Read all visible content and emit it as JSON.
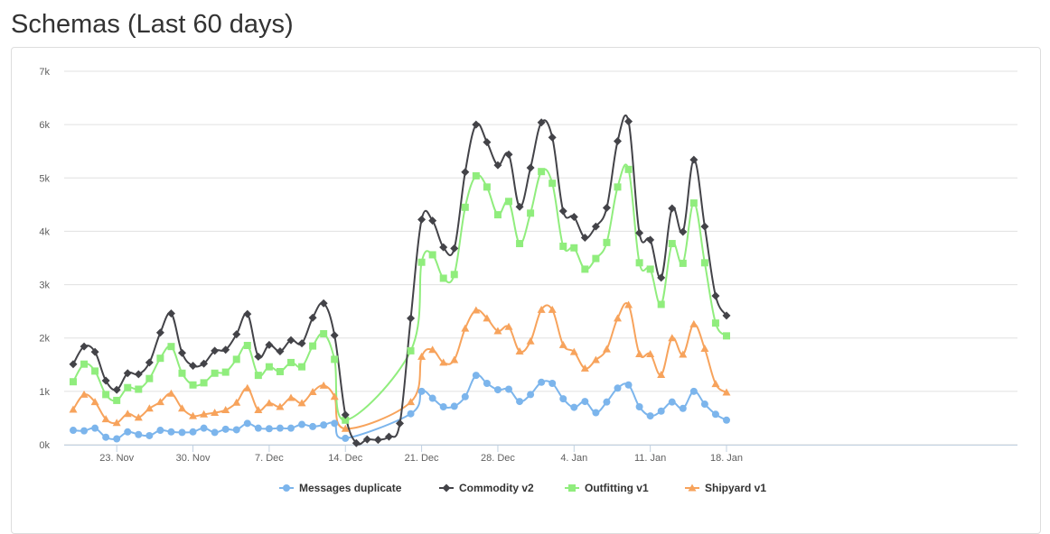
{
  "page": {
    "title": "Schemas (Last 60 days)"
  },
  "chart_data": {
    "type": "line",
    "title": "Schemas (Last 60 days)",
    "xlabel": "",
    "ylabel": "",
    "ylim": [
      0,
      7000
    ],
    "y_ticks": [
      0,
      1000,
      2000,
      3000,
      4000,
      5000,
      6000,
      7000
    ],
    "y_tick_labels": [
      "0k",
      "1k",
      "2k",
      "3k",
      "4k",
      "5k",
      "6k",
      "7k"
    ],
    "x_ticks": [
      "23. Nov",
      "30. Nov",
      "7. Dec",
      "14. Dec",
      "21. Dec",
      "28. Dec",
      "4. Jan",
      "11. Jan",
      "18. Jan"
    ],
    "x_start": "2016-11-19",
    "legend_position": "bottom-center",
    "grid": true,
    "x": [
      "2016-11-19",
      "2016-11-20",
      "2016-11-21",
      "2016-11-22",
      "2016-11-23",
      "2016-11-24",
      "2016-11-25",
      "2016-11-26",
      "2016-11-27",
      "2016-11-28",
      "2016-11-29",
      "2016-11-30",
      "2016-12-01",
      "2016-12-02",
      "2016-12-03",
      "2016-12-04",
      "2016-12-05",
      "2016-12-06",
      "2016-12-07",
      "2016-12-08",
      "2016-12-09",
      "2016-12-10",
      "2016-12-11",
      "2016-12-12",
      "2016-12-13",
      "2016-12-14",
      "2016-12-15",
      "2016-12-16",
      "2016-12-17",
      "2016-12-18",
      "2016-12-19",
      "2016-12-20",
      "2016-12-21",
      "2016-12-22",
      "2016-12-23",
      "2016-12-24",
      "2016-12-25",
      "2016-12-26",
      "2016-12-27",
      "2016-12-28",
      "2016-12-29",
      "2016-12-30",
      "2016-12-31",
      "2017-01-01",
      "2017-01-02",
      "2017-01-03",
      "2017-01-04",
      "2017-01-05",
      "2017-01-06",
      "2017-01-07",
      "2017-01-08",
      "2017-01-09",
      "2017-01-10",
      "2017-01-11",
      "2017-01-12",
      "2017-01-13",
      "2017-01-14",
      "2017-01-15",
      "2017-01-16",
      "2017-01-17",
      "2017-01-18",
      "2017-01-19"
    ],
    "series": [
      {
        "name": "Messages duplicate",
        "color": "#7cb5ec",
        "marker": "circle",
        "values": [
          270,
          260,
          310,
          140,
          110,
          240,
          190,
          170,
          270,
          240,
          230,
          240,
          310,
          230,
          290,
          280,
          400,
          310,
          300,
          310,
          310,
          380,
          340,
          370,
          400,
          120,
          null,
          null,
          null,
          null,
          null,
          580,
          1000,
          870,
          710,
          720,
          900,
          1300,
          1150,
          1030,
          1040,
          810,
          940,
          1170,
          1150,
          860,
          700,
          810,
          600,
          800,
          1060,
          1120,
          710,
          540,
          630,
          800,
          680,
          1000,
          760,
          570,
          460,
          null
        ]
      },
      {
        "name": "Commodity v2",
        "color": "#434348",
        "marker": "diamond",
        "values": [
          1510,
          1840,
          1740,
          1200,
          1030,
          1340,
          1320,
          1540,
          2100,
          2460,
          1720,
          1480,
          1520,
          1760,
          1780,
          2070,
          2450,
          1650,
          1870,
          1750,
          1960,
          1900,
          2380,
          2650,
          2050,
          560,
          30,
          100,
          90,
          150,
          400,
          2370,
          4220,
          4200,
          3700,
          3680,
          5110,
          6000,
          5670,
          5240,
          5440,
          4460,
          5190,
          6040,
          5760,
          4380,
          4270,
          3880,
          4090,
          4440,
          5690,
          6060,
          3970,
          3840,
          3130,
          4430,
          3990,
          5340,
          4090,
          2790,
          2420,
          null
        ]
      },
      {
        "name": "Outfitting v1",
        "color": "#90ed7d",
        "marker": "square",
        "values": [
          1180,
          1510,
          1380,
          940,
          830,
          1070,
          1040,
          1240,
          1620,
          1840,
          1340,
          1120,
          1160,
          1340,
          1360,
          1600,
          1860,
          1300,
          1460,
          1370,
          1540,
          1460,
          1850,
          2080,
          1600,
          460,
          null,
          null,
          null,
          null,
          null,
          1760,
          3420,
          3560,
          3120,
          3190,
          4450,
          5040,
          4830,
          4310,
          4560,
          3770,
          4340,
          5120,
          4900,
          3720,
          3690,
          3290,
          3490,
          3790,
          4830,
          5160,
          3410,
          3290,
          2630,
          3770,
          3400,
          4530,
          3410,
          2280,
          2040,
          null
        ]
      },
      {
        "name": "Shipyard v1",
        "color": "#f7a35c",
        "marker": "triangle",
        "values": [
          660,
          940,
          800,
          480,
          410,
          580,
          510,
          680,
          800,
          960,
          680,
          540,
          570,
          600,
          650,
          790,
          1060,
          650,
          780,
          710,
          880,
          780,
          990,
          1110,
          900,
          300,
          null,
          null,
          null,
          null,
          null,
          800,
          1650,
          1780,
          1540,
          1590,
          2180,
          2520,
          2370,
          2130,
          2210,
          1750,
          1940,
          2530,
          2530,
          1870,
          1740,
          1430,
          1590,
          1790,
          2370,
          2620,
          1700,
          1700,
          1310,
          2000,
          1690,
          2260,
          1800,
          1140,
          980,
          null
        ]
      }
    ]
  }
}
